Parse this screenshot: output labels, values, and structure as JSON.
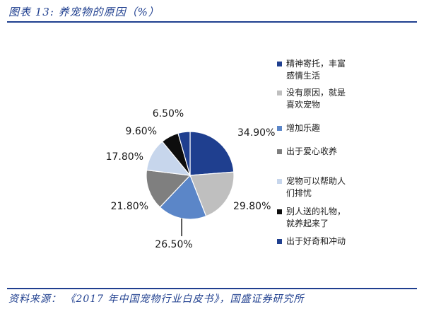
{
  "header": {
    "title": "图表 13:  养宠物的原因（%）"
  },
  "footer": {
    "source": "资料来源：  《2017 年中国宠物行业白皮书》，国盛证券研究所"
  },
  "colors": {
    "rule": "#1f3f8f",
    "s1": "#1f3f8f",
    "s2": "#bfbfbf",
    "s3": "#5b86c8",
    "s4": "#7f7f7f",
    "s5": "#c7d6ec",
    "s6": "#0d0d0d",
    "s7": "#1f3f8f"
  },
  "chart_data": {
    "type": "pie",
    "categories": [
      "精神寄托，丰富感情生活",
      "没有原因，就是喜欢宠物",
      "增加乐趣",
      "出于爱心收养",
      "宠物可以帮助人们排忧",
      "别人送的礼物，就养起来了",
      "出于好奇和冲动"
    ],
    "values": [
      34.9,
      29.8,
      26.5,
      21.8,
      17.8,
      9.6,
      6.5
    ],
    "labels": [
      "34.90%",
      "29.80%",
      "26.50%",
      "21.80%",
      "17.80%",
      "9.60%",
      "6.50%"
    ],
    "legend": {
      "position": "right",
      "entries": [
        "精神寄托，丰富\n感情生活",
        "没有原因，就是\n喜欢宠物",
        "增加乐趣",
        "出于爱心收养",
        "宠物可以帮助人\n们排忧",
        "别人送的礼物，\n就养起来了",
        "出于好奇和冲动"
      ]
    }
  }
}
